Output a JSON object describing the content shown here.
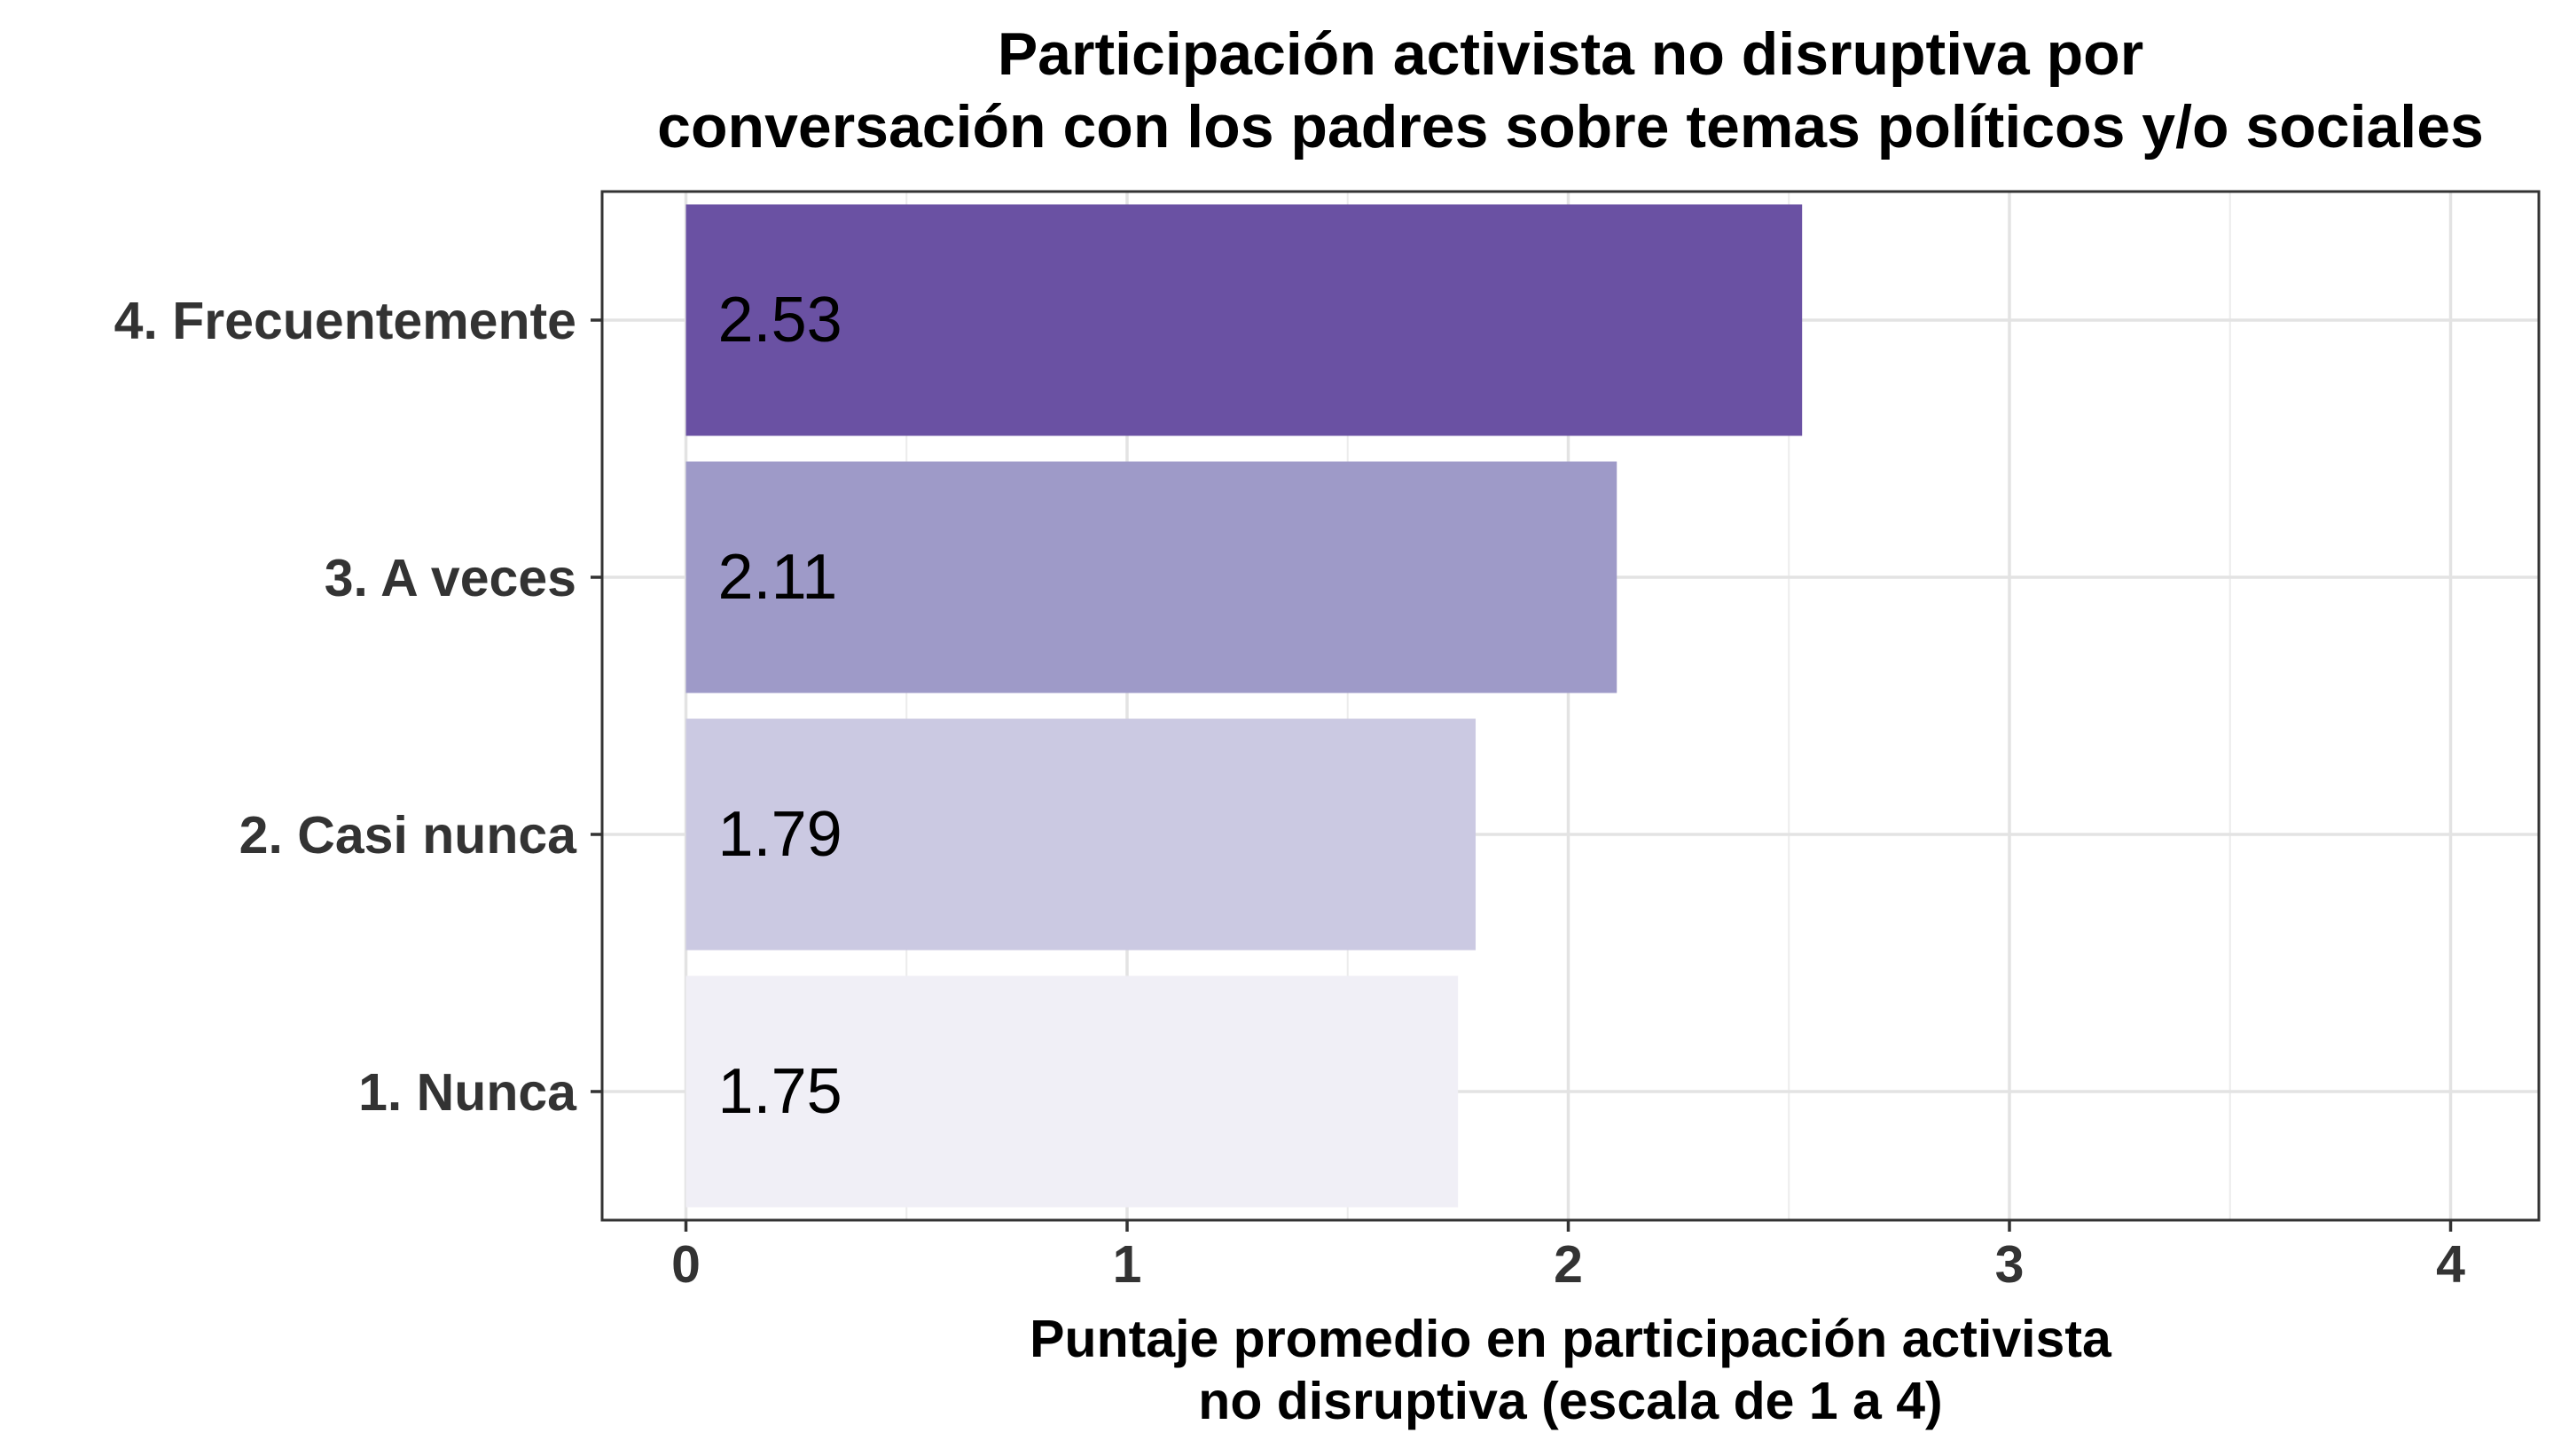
{
  "chart_data": {
    "type": "bar",
    "orientation": "horizontal",
    "title": "Participación activista no disruptiva por\nconversación con los padres sobre temas políticos y/o sociales",
    "xlabel": "Puntaje promedio en participación activista\nno disruptiva (escala de 1 a 4)",
    "ylabel": "",
    "categories": [
      "4. Frecuentemente",
      "3. A veces",
      "2. Casi nunca",
      "1. Nunca"
    ],
    "values": [
      2.53,
      2.11,
      1.79,
      1.75
    ],
    "value_labels": [
      "2.53",
      "2.11",
      "1.79",
      "1.75"
    ],
    "bar_colors": [
      "#6a51a3",
      "#9e9ac8",
      "#cbc9e2",
      "#f0eff6"
    ],
    "xlim": [
      -0.19,
      4.2
    ],
    "xticks": [
      0,
      1,
      2,
      3,
      4
    ],
    "xtick_labels": [
      "0",
      "1",
      "2",
      "3",
      "4"
    ],
    "grid": true,
    "legend": "none"
  }
}
